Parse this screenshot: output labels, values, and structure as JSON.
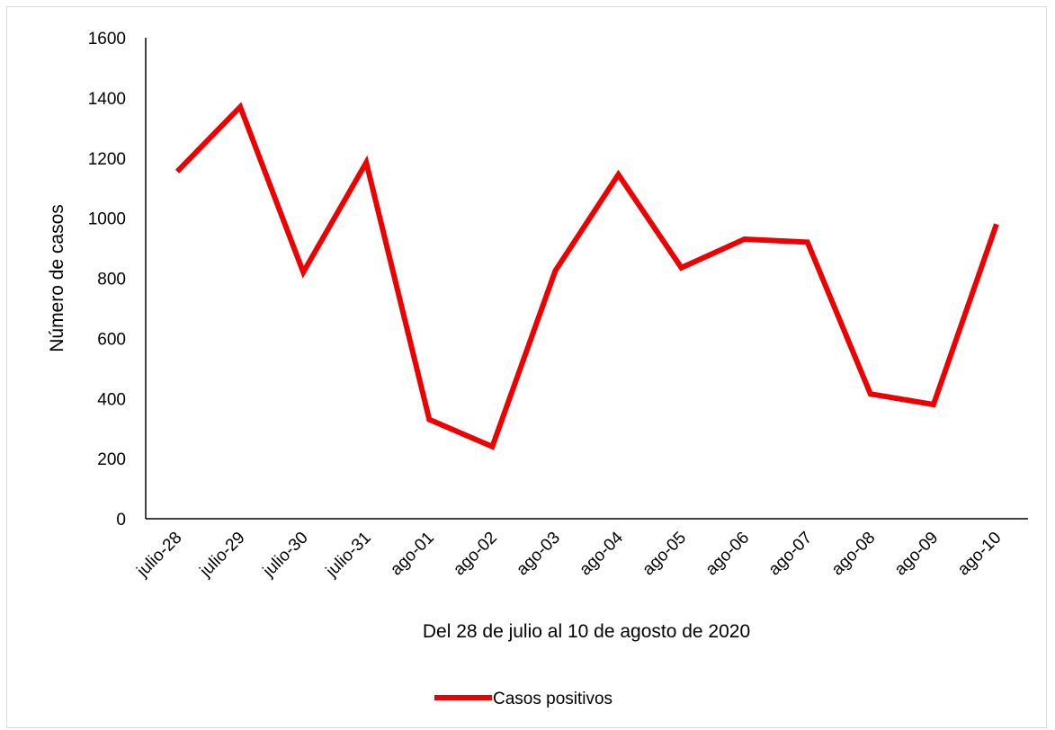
{
  "chart_data": {
    "type": "line",
    "title": "",
    "xlabel": "Del 28 de julio al 10 de agosto de 2020",
    "ylabel": "Número de casos",
    "ylim": [
      0,
      1600
    ],
    "yticks": [
      "0",
      "200",
      "400",
      "600",
      "800",
      "1000",
      "1200",
      "1400",
      "1600"
    ],
    "grid": false,
    "legend_position": "bottom",
    "categories": [
      "julio-28",
      "julio-29",
      "julio-30",
      "julio-31",
      "ago-01",
      "ago-02",
      "ago-03",
      "ago-04",
      "ago-05",
      "ago-06",
      "ago-07",
      "ago-08",
      "ago-09",
      "ago-10"
    ],
    "series": [
      {
        "name": "Casos positivos",
        "color": "#ee0000",
        "values": [
          1155,
          1370,
          820,
          1185,
          330,
          240,
          825,
          1145,
          835,
          930,
          920,
          415,
          380,
          980
        ]
      }
    ]
  }
}
